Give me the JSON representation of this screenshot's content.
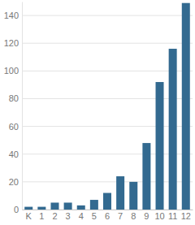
{
  "chart_data": {
    "type": "bar",
    "categories": [
      "K",
      "1",
      "2",
      "3",
      "4",
      "5",
      "6",
      "7",
      "8",
      "9",
      "10",
      "11",
      "12"
    ],
    "values": [
      2,
      2,
      5,
      5,
      3,
      7,
      12,
      24,
      20,
      48,
      92,
      116,
      149
    ],
    "color": "#336a90",
    "ylim": [
      0,
      150
    ],
    "yticks": [
      0,
      20,
      40,
      60,
      80,
      100,
      120,
      140
    ],
    "grid": true
  }
}
